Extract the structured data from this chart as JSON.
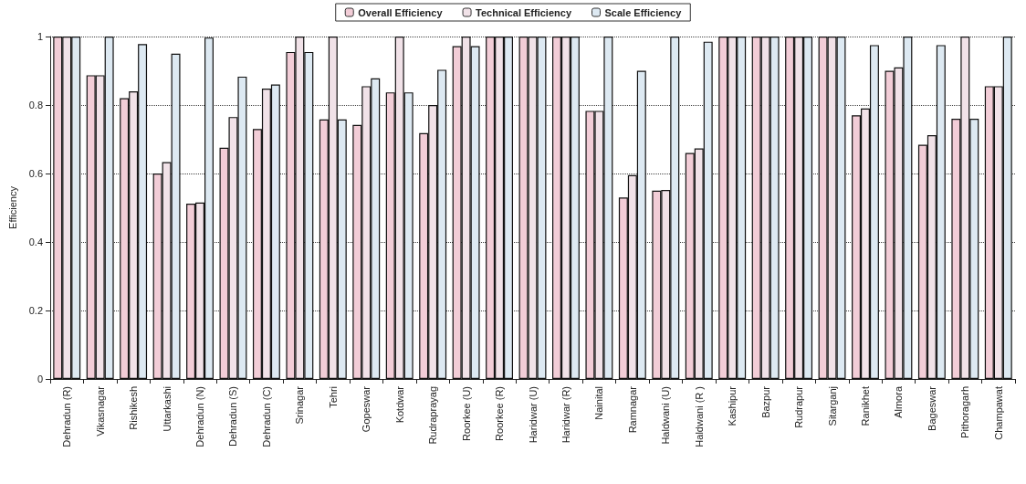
{
  "chart_data": {
    "type": "bar",
    "ylabel": "Efficiency",
    "categories": [
      "Dehradun (R)",
      "Vikasnagar",
      "Rishikesh",
      "Uttarkashi",
      "Dehradun (N)",
      "Dehradun (S)",
      "Dehradun (C)",
      "Srinagar",
      "Tehri",
      "Gopeswar",
      "Kotdwar",
      "Rudraprayag",
      "Roorkee (U)",
      "Roorkee (R)",
      "Haridwar (U)",
      "Haridwar (R)",
      "Nainital",
      "Ramnagar",
      "Haldwani (U)",
      "Haldwani (R )",
      "Kashipur",
      "Bazpur",
      "Rudrapur",
      "Sitarganj",
      "Ranikhet",
      "Almora",
      "Bageswar",
      "Pithoragarh",
      "Champawat"
    ],
    "series": [
      {
        "name": "Overall Efficiency",
        "color": "#f2cdd7",
        "values": [
          1,
          0.887,
          0.82,
          0.6,
          0.512,
          0.675,
          0.73,
          0.955,
          0.758,
          0.742,
          0.837,
          0.718,
          0.972,
          1,
          1,
          1,
          0.783,
          0.53,
          0.55,
          0.66,
          1,
          1,
          1,
          1,
          0.77,
          0.9,
          0.684,
          0.76,
          0.855
        ]
      },
      {
        "name": "Technical Efficiency",
        "color": "#f1e2e8",
        "values": [
          1,
          0.887,
          0.84,
          0.633,
          0.515,
          0.765,
          0.848,
          1,
          1,
          0.855,
          1,
          0.8,
          1,
          1,
          1,
          1,
          0.783,
          0.595,
          0.552,
          0.673,
          1,
          1,
          1,
          1,
          0.79,
          0.91,
          0.712,
          1,
          0.855
        ]
      },
      {
        "name": "Scale Efficiency",
        "color": "#dde9f2",
        "values": [
          1,
          1,
          0.978,
          0.95,
          0.997,
          0.883,
          0.86,
          0.955,
          0.758,
          0.878,
          0.837,
          0.903,
          0.972,
          1,
          1,
          1,
          1,
          0.9,
          1,
          0.985,
          1,
          1,
          1,
          1,
          0.975,
          1,
          0.975,
          0.76,
          1
        ]
      }
    ],
    "ylim": [
      0,
      1
    ],
    "yticks": [
      0,
      0.2,
      0.4,
      0.6,
      0.8,
      1
    ],
    "grid": "y",
    "legend": "top"
  }
}
